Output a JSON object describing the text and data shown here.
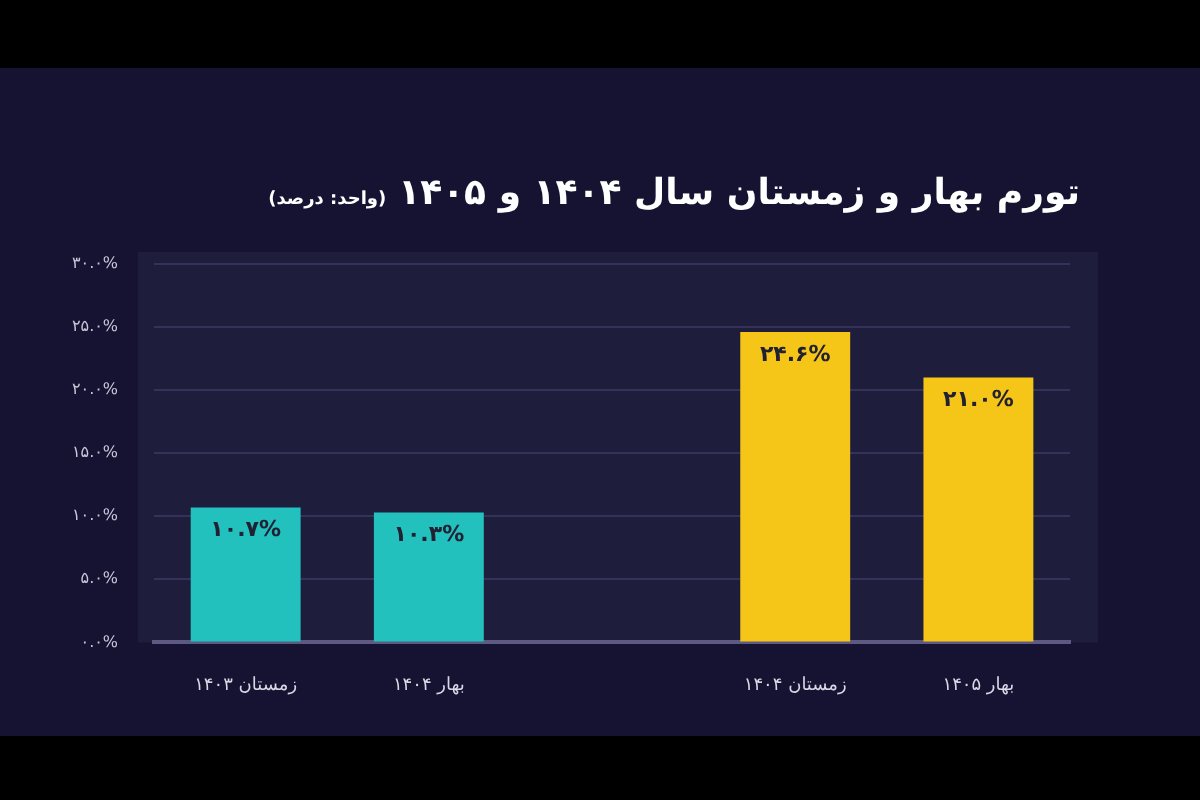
{
  "chart_data": {
    "type": "bar",
    "title": "تورم بهار و زمستان سال ۱۴۰۴ و ۱۴۰۵",
    "subtitle": "(واحد: درصد)",
    "categories": [
      "زمستان ۱۴۰۳",
      "بهار ۱۴۰۴",
      null,
      "زمستان ۱۴۰۴",
      "بهار ۱۴۰۵"
    ],
    "values": [
      10.7,
      10.3,
      null,
      24.6,
      21.0
    ],
    "colors": [
      "#22c1bd",
      "#22c1bd",
      "#22c1bd",
      "#f5c518",
      "#f5c518"
    ],
    "value_labels": [
      "۱۰.۷%",
      "۱۰.۳%",
      null,
      "۲۴.۶%",
      "۲۱.۰%"
    ],
    "ylim": [
      0,
      30
    ],
    "yticks": [
      {
        "value": 0,
        "label": "۰.۰%"
      },
      {
        "value": 5,
        "label": "۵.۰%"
      },
      {
        "value": 10,
        "label": "۱۰.۰%"
      },
      {
        "value": 15,
        "label": "۱۵.۰%"
      },
      {
        "value": 20,
        "label": "۲۰.۰%"
      },
      {
        "value": 25,
        "label": "۲۵.۰%"
      },
      {
        "value": 30,
        "label": "۳۰.۰%"
      }
    ],
    "grid": "y",
    "legend": false
  }
}
